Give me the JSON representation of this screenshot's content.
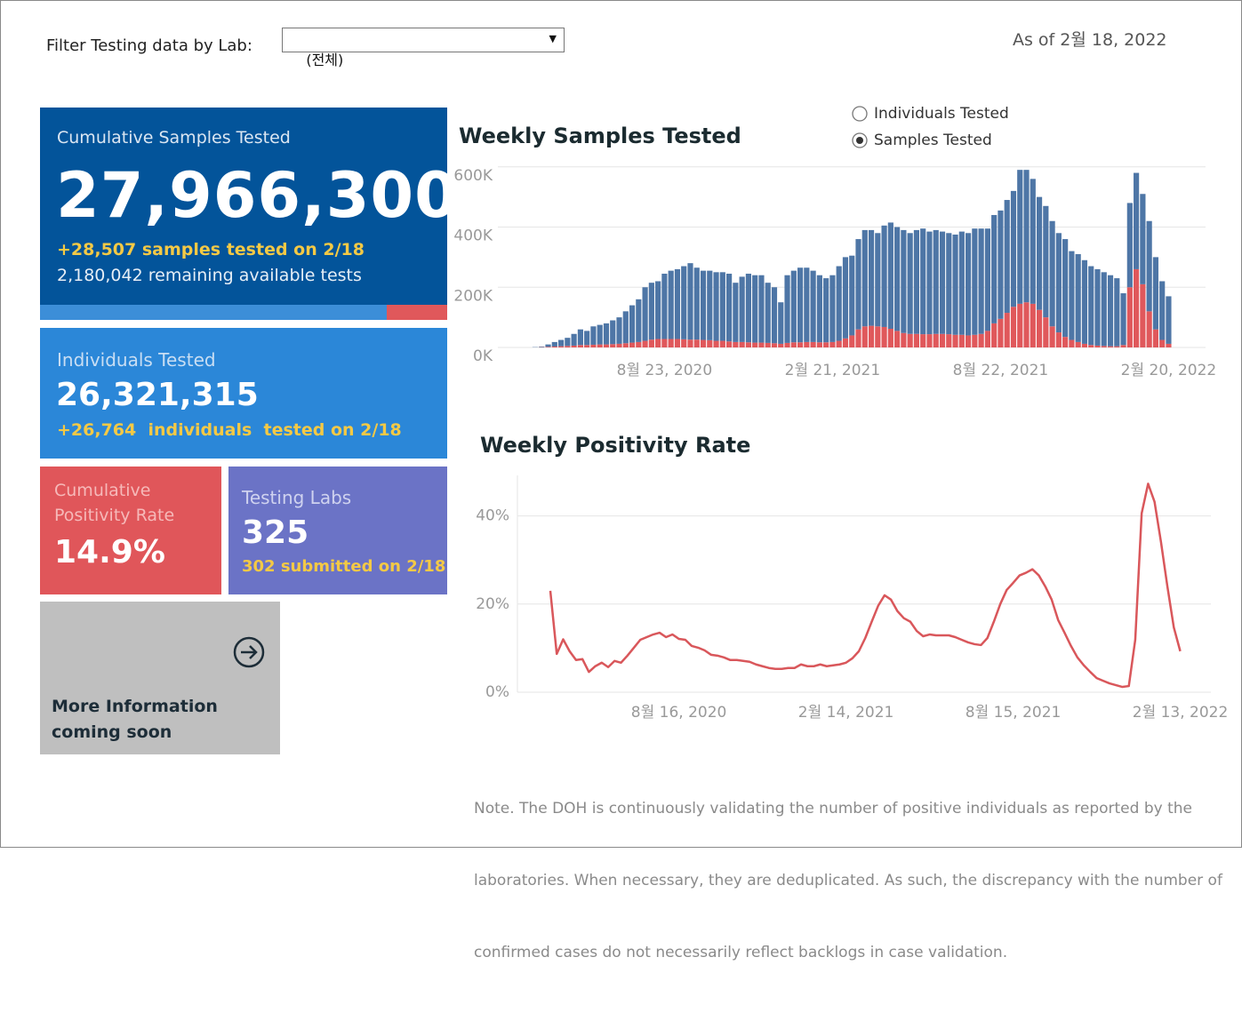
{
  "header": {
    "filter_label": "Filter Testing data by Lab:",
    "filter_value": "(전체)",
    "as_of": "As of 2월 18, 2022"
  },
  "cards": [
    {
      "title": "Cumulative Samples Tested",
      "value": "27,966,300",
      "change": "+28,507 samples tested on 2/18",
      "detail": "2,180,042 remaining available tests"
    },
    {
      "title": "Individuals Tested",
      "value": "26,321,315",
      "change": "+26,764  individuals  tested on 2/18"
    },
    {
      "title_lines": [
        "Cumulative",
        "Positivity Rate"
      ],
      "value": "14.9%"
    },
    {
      "title": "Testing Labs",
      "value": "325",
      "change": "302 submitted on 2/18"
    },
    {
      "lines": [
        "More Information",
        "coming soon"
      ]
    }
  ],
  "radio": {
    "options": [
      {
        "label": "Individuals Tested",
        "selected": false
      },
      {
        "label": "Samples Tested",
        "selected": true
      }
    ]
  },
  "chart_data": [
    {
      "type": "bar",
      "stacked": true,
      "title": "Weekly Samples Tested",
      "categories": [
        null,
        null,
        null,
        null,
        null,
        null,
        null,
        null,
        null,
        null,
        null,
        null,
        null,
        null,
        null,
        null,
        null,
        null,
        null,
        null,
        "8월 23, 2020",
        null,
        null,
        null,
        null,
        null,
        null,
        null,
        null,
        null,
        null,
        null,
        null,
        null,
        null,
        null,
        null,
        null,
        null,
        null,
        null,
        null,
        null,
        null,
        null,
        null,
        "2월 21, 2021",
        null,
        null,
        null,
        null,
        null,
        null,
        null,
        null,
        null,
        null,
        null,
        null,
        null,
        null,
        null,
        null,
        null,
        null,
        null,
        null,
        null,
        null,
        null,
        null,
        null,
        "8월 22, 2021",
        null,
        null,
        null,
        null,
        null,
        null,
        null,
        null,
        null,
        null,
        null,
        null,
        null,
        null,
        null,
        null,
        null,
        null,
        null,
        null,
        null,
        null,
        null,
        null,
        null,
        "2월 20, 2022"
      ],
      "series": [
        {
          "color": "#e0585b",
          "values": [
            0,
            1,
            2,
            3,
            4,
            5,
            6,
            8,
            8,
            9,
            10,
            10,
            11,
            12,
            14,
            16,
            18,
            22,
            26,
            28,
            28,
            28,
            28,
            27,
            26,
            26,
            25,
            24,
            22,
            22,
            20,
            18,
            18,
            17,
            16,
            16,
            15,
            14,
            12,
            15,
            17,
            17,
            18,
            18,
            17,
            17,
            18,
            22,
            30,
            40,
            60,
            70,
            72,
            70,
            68,
            62,
            55,
            48,
            45,
            45,
            44,
            44,
            45,
            45,
            44,
            42,
            42,
            40,
            42,
            45,
            55,
            80,
            95,
            115,
            135,
            145,
            150,
            145,
            125,
            100,
            70,
            50,
            35,
            25,
            18,
            12,
            8,
            6,
            5,
            4,
            4,
            8,
            200,
            260,
            210,
            120,
            60,
            25,
            12
          ]
        },
        {
          "color": "#4e76a6",
          "values": [
            1,
            2,
            8,
            15,
            21,
            27,
            39,
            52,
            47,
            61,
            65,
            70,
            79,
            88,
            106,
            124,
            142,
            178,
            189,
            192,
            217,
            227,
            232,
            243,
            254,
            239,
            230,
            231,
            228,
            228,
            225,
            197,
            217,
            228,
            224,
            224,
            200,
            186,
            138,
            225,
            238,
            248,
            247,
            237,
            223,
            213,
            222,
            248,
            270,
            265,
            300,
            320,
            318,
            310,
            337,
            353,
            345,
            342,
            335,
            345,
            351,
            341,
            345,
            340,
            336,
            333,
            343,
            340,
            353,
            350,
            340,
            360,
            360,
            375,
            385,
            445,
            440,
            415,
            375,
            370,
            350,
            330,
            325,
            295,
            292,
            278,
            262,
            254,
            245,
            236,
            226,
            172,
            280,
            320,
            300,
            300,
            240,
            195,
            158
          ]
        }
      ],
      "ylim": [
        0,
        620
      ],
      "yticks": [
        {
          "value": 0,
          "label": "0K"
        },
        {
          "value": 200,
          "label": "200K"
        },
        {
          "value": 400,
          "label": "400K"
        },
        {
          "value": 600,
          "label": "600K"
        }
      ],
      "grid": true
    },
    {
      "type": "line",
      "title": "Weekly Positivity Rate",
      "categories": [
        null,
        null,
        null,
        null,
        null,
        null,
        null,
        null,
        null,
        null,
        null,
        null,
        null,
        null,
        null,
        null,
        null,
        null,
        null,
        null,
        "8월 16, 2020",
        null,
        null,
        null,
        null,
        null,
        null,
        null,
        null,
        null,
        null,
        null,
        null,
        null,
        null,
        null,
        null,
        null,
        null,
        null,
        null,
        null,
        null,
        null,
        null,
        null,
        "2월 14, 2021",
        null,
        null,
        null,
        null,
        null,
        null,
        null,
        null,
        null,
        null,
        null,
        null,
        null,
        null,
        null,
        null,
        null,
        null,
        null,
        null,
        null,
        null,
        null,
        null,
        null,
        "8월 15, 2021",
        null,
        null,
        null,
        null,
        null,
        null,
        null,
        null,
        null,
        null,
        null,
        null,
        null,
        null,
        null,
        null,
        null,
        null,
        null,
        null,
        null,
        null,
        null,
        null,
        null,
        "2월 13, 2022"
      ],
      "color": "#d9575b",
      "values": [
        23,
        8.7,
        12,
        9.3,
        7.3,
        7.5,
        4.6,
        5.9,
        6.7,
        5.7,
        7.1,
        6.7,
        8.3,
        10.1,
        11.9,
        12.5,
        13.1,
        13.5,
        12.5,
        13.1,
        12.1,
        11.9,
        10.5,
        10.1,
        9.5,
        8.5,
        8.3,
        7.9,
        7.3,
        7.3,
        7.1,
        6.9,
        6.3,
        5.9,
        5.5,
        5.3,
        5.3,
        5.5,
        5.5,
        6.3,
        5.9,
        5.9,
        6.3,
        5.9,
        6.1,
        6.3,
        6.7,
        7.7,
        9.3,
        12.3,
        16,
        19.6,
        22,
        21,
        18.4,
        16.8,
        16,
        13.9,
        12.7,
        13.1,
        12.9,
        12.9,
        12.9,
        12.5,
        11.9,
        11.3,
        10.9,
        10.7,
        12.3,
        16,
        20,
        23.2,
        24.8,
        26.5,
        27.1,
        27.9,
        26.5,
        24,
        21,
        16.4,
        13.5,
        10.5,
        7.9,
        6.1,
        4.6,
        3.2,
        2.6,
        2,
        1.6,
        1.2,
        1.4,
        11.9,
        40.6,
        47.3,
        43.2,
        34.1,
        24,
        14.7,
        9.3
      ],
      "ylim": [
        0,
        50
      ],
      "yticks": [
        {
          "value": 0,
          "label": "0%"
        },
        {
          "value": 20,
          "label": "20%"
        },
        {
          "value": 40,
          "label": "40%"
        }
      ],
      "grid": true
    }
  ],
  "note": {
    "lines": [
      "Note. The DOH is continuously validating the number of positive individuals as reported by the",
      "laboratories. When necessary, they are deduplicated. As such, the discrepancy with the number of",
      "confirmed cases do not necessarily reflect backlogs in case validation."
    ]
  }
}
